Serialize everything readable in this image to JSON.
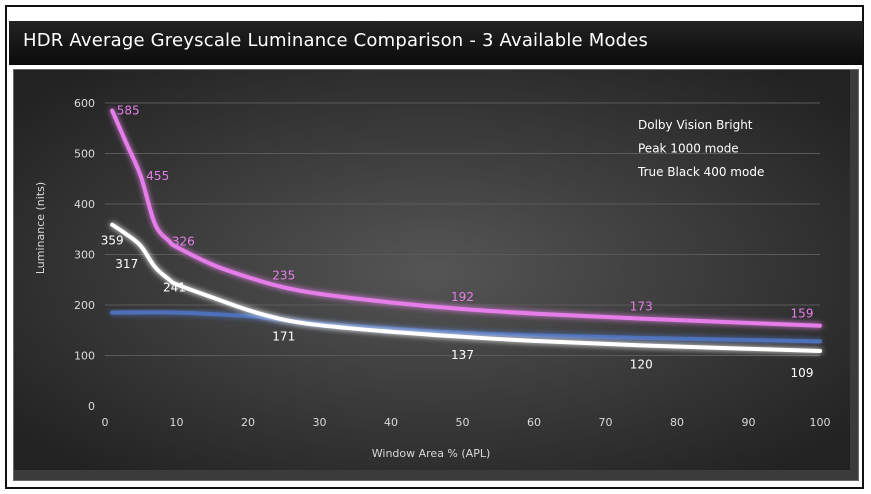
{
  "chart_data": {
    "type": "line",
    "title": "HDR Average Greyscale Luminance Comparison - 3 Available Modes",
    "xlabel": "Window Area % (APL)",
    "ylabel": "Luminance (nits)",
    "xlim": [
      0,
      100
    ],
    "ylim": [
      0,
      600
    ],
    "xticks": [
      "0",
      "10",
      "20",
      "30",
      "40",
      "50",
      "60",
      "70",
      "80",
      "90",
      "100"
    ],
    "yticks": [
      "0",
      "100",
      "200",
      "300",
      "400",
      "500",
      "600"
    ],
    "grid": "horizontal",
    "legend_position": "top-right",
    "colors": {
      "background": "#3b3b3b",
      "grid": "#5a5a5a",
      "title_bar": "#1a1a1a"
    },
    "series": [
      {
        "name": "Dolby Vision Bright",
        "color": "#e57ee8",
        "label_color": "#e57ee8",
        "x": [
          1,
          3,
          5,
          7,
          9,
          10,
          15,
          20,
          25,
          30,
          40,
          50,
          60,
          75,
          100
        ],
        "y": [
          585,
          520,
          455,
          360,
          326,
          315,
          280,
          255,
          235,
          222,
          205,
          192,
          183,
          173,
          159
        ],
        "labels": [
          {
            "x": 1,
            "y": 585,
            "text": "585"
          },
          {
            "x": 5,
            "y": 455,
            "text": "455"
          },
          {
            "x": 9,
            "y": 326,
            "text": "326"
          },
          {
            "x": 25,
            "y": 235,
            "text": "235"
          },
          {
            "x": 50,
            "y": 192,
            "text": "192"
          },
          {
            "x": 75,
            "y": 173,
            "text": "173"
          },
          {
            "x": 100,
            "y": 159,
            "text": "159"
          }
        ]
      },
      {
        "name": "Peak 1000 mode",
        "color": "#ffffff",
        "label_color": "#ffffff",
        "x": [
          1,
          3,
          5,
          7,
          9,
          10,
          15,
          20,
          25,
          30,
          40,
          50,
          60,
          75,
          100
        ],
        "y": [
          359,
          340,
          317,
          275,
          250,
          241,
          215,
          190,
          171,
          160,
          147,
          137,
          129,
          120,
          109
        ],
        "labels": [
          {
            "x": 1,
            "y": 359,
            "text": "359"
          },
          {
            "x": 5,
            "y": 317,
            "text": "317"
          },
          {
            "x": 10,
            "y": 241,
            "text": "241"
          },
          {
            "x": 25,
            "y": 171,
            "text": "171"
          },
          {
            "x": 50,
            "y": 137,
            "text": "137"
          },
          {
            "x": 75,
            "y": 120,
            "text": "120"
          },
          {
            "x": 100,
            "y": 109,
            "text": "109"
          }
        ]
      },
      {
        "name": "True Black 400 mode",
        "color": "#4d6fb8",
        "label_color": "#4d6fb8",
        "x": [
          1,
          10,
          20,
          25,
          30,
          40,
          50,
          60,
          75,
          100
        ],
        "y": [
          185,
          185,
          178,
          170,
          163,
          153,
          145,
          140,
          135,
          128
        ],
        "labels": []
      }
    ]
  }
}
